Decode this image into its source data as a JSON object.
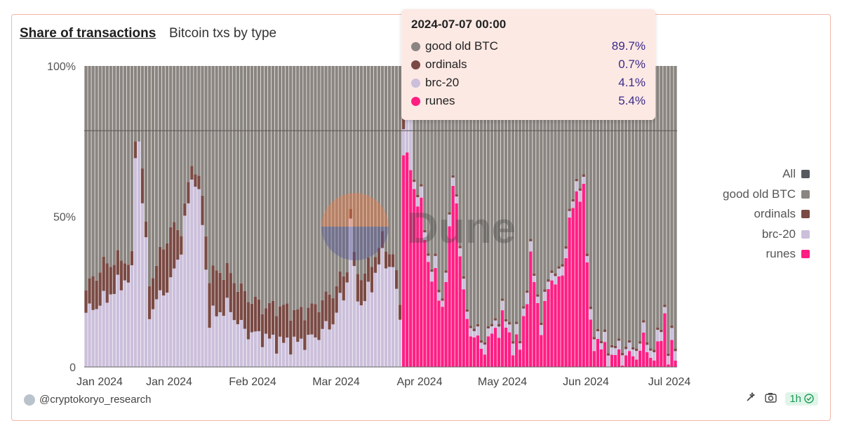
{
  "header": {
    "title": "Share of transactions",
    "subtitle": "Bitcoin txs by type"
  },
  "legend": [
    {
      "label": "All",
      "color": "#555a60"
    },
    {
      "label": "good old BTC",
      "color": "#8a8580"
    },
    {
      "label": "ordinals",
      "color": "#7a4a44"
    },
    {
      "label": "brc-20",
      "color": "#cbbfdb"
    },
    {
      "label": "runes",
      "color": "#ff1e83"
    }
  ],
  "tooltip": {
    "time": "2024-07-07 00:00",
    "rows": [
      {
        "label": "good old BTC",
        "value": "89.7%",
        "color": "#8a8580"
      },
      {
        "label": "ordinals",
        "value": "0.7%",
        "color": "#7a4a44"
      },
      {
        "label": "brc-20",
        "value": "4.1%",
        "color": "#cbbfdb"
      },
      {
        "label": "runes",
        "value": "5.4%",
        "color": "#ff1e83"
      }
    ]
  },
  "footer": {
    "author": "@cryptokoryo_research",
    "refresh": "1h"
  },
  "watermark": "Dune",
  "chart_data": {
    "type": "bar",
    "stacked": true,
    "xlabel": "",
    "ylabel": "",
    "y_tick_labels": [
      "0",
      "50%",
      "100%"
    ],
    "x_tick_labels": [
      "Jan 2024",
      "Jan 2024",
      "Feb 2024",
      "Mar 2024",
      "Apr 2024",
      "May 2024",
      "Jun 2024",
      "Jul 2024"
    ],
    "ylim": [
      0,
      100
    ],
    "colors": {
      "brc20": "#cbbfdb",
      "ordinals": "#7a4a44",
      "runes": "#ff1e83",
      "btc": "#8a8580"
    },
    "reference_line": 78.5,
    "series_order": [
      "runes",
      "brc20",
      "ordinals",
      "good old BTC"
    ],
    "brc20_anchors": [
      [
        0,
        18
      ],
      [
        5,
        22
      ],
      [
        10,
        28
      ],
      [
        13,
        30
      ],
      [
        14,
        72
      ],
      [
        15,
        75
      ],
      [
        16,
        55
      ],
      [
        17,
        40
      ],
      [
        18,
        18
      ],
      [
        20,
        22
      ],
      [
        24,
        28
      ],
      [
        27,
        40
      ],
      [
        30,
        62
      ],
      [
        31,
        63
      ],
      [
        33,
        48
      ],
      [
        35,
        16
      ],
      [
        40,
        20
      ],
      [
        45,
        12
      ],
      [
        50,
        10
      ],
      [
        55,
        8
      ],
      [
        60,
        8
      ],
      [
        65,
        10
      ],
      [
        70,
        15
      ],
      [
        74,
        28
      ],
      [
        75,
        50
      ],
      [
        76,
        30
      ],
      [
        78,
        20
      ],
      [
        80,
        25
      ],
      [
        84,
        37
      ],
      [
        87,
        32
      ],
      [
        90,
        10
      ],
      [
        92,
        30
      ]
    ],
    "ordinals_anchors": [
      [
        0,
        8
      ],
      [
        5,
        12
      ],
      [
        10,
        8
      ],
      [
        13,
        5
      ],
      [
        14,
        4
      ],
      [
        15,
        1
      ],
      [
        16,
        12
      ],
      [
        17,
        5
      ],
      [
        18,
        10
      ],
      [
        20,
        12
      ],
      [
        24,
        18
      ],
      [
        27,
        6
      ],
      [
        30,
        5
      ],
      [
        31,
        4
      ],
      [
        33,
        8
      ],
      [
        35,
        15
      ],
      [
        40,
        12
      ],
      [
        45,
        12
      ],
      [
        50,
        10
      ],
      [
        55,
        12
      ],
      [
        60,
        10
      ],
      [
        65,
        10
      ],
      [
        70,
        10
      ],
      [
        74,
        5
      ],
      [
        75,
        3
      ],
      [
        76,
        5
      ],
      [
        78,
        10
      ],
      [
        80,
        8
      ],
      [
        84,
        5
      ],
      [
        87,
        5
      ],
      [
        90,
        5
      ],
      [
        92,
        5
      ]
    ],
    "runes_anchors": [
      [
        0,
        0
      ],
      [
        89,
        0
      ],
      [
        90,
        72
      ],
      [
        91,
        70
      ],
      [
        92,
        76
      ],
      [
        93,
        60
      ],
      [
        95,
        52
      ],
      [
        97,
        35
      ],
      [
        99,
        28
      ],
      [
        101,
        20
      ],
      [
        103,
        42
      ],
      [
        104,
        62
      ],
      [
        105,
        55
      ],
      [
        107,
        22
      ],
      [
        109,
        12
      ],
      [
        112,
        6
      ],
      [
        115,
        10
      ],
      [
        118,
        16
      ],
      [
        120,
        10
      ],
      [
        123,
        6
      ],
      [
        126,
        35
      ],
      [
        129,
        14
      ],
      [
        132,
        30
      ],
      [
        135,
        28
      ],
      [
        137,
        50
      ],
      [
        139,
        55
      ],
      [
        140,
        59
      ],
      [
        141,
        60
      ],
      [
        142,
        35
      ],
      [
        143,
        12
      ],
      [
        146,
        6
      ],
      [
        149,
        3
      ],
      [
        152,
        4
      ],
      [
        155,
        3
      ],
      [
        158,
        8
      ],
      [
        160,
        4
      ],
      [
        162,
        4
      ],
      [
        164,
        18
      ],
      [
        165,
        3
      ],
      [
        166,
        4
      ],
      [
        167,
        5
      ]
    ],
    "count": 168
  }
}
